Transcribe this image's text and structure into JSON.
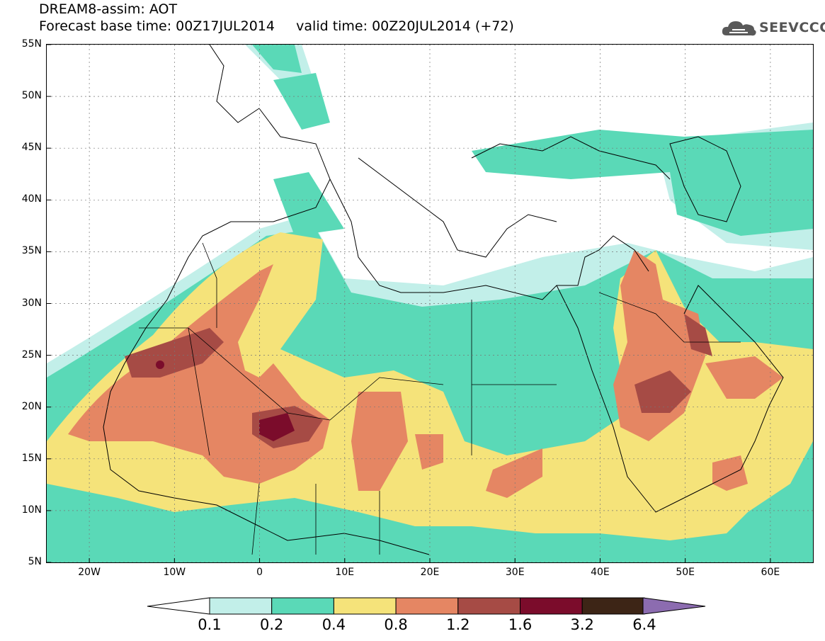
{
  "header": {
    "line1": "DREAM8-assim: AOT",
    "line2": "Forecast base time: 00Z17JUL2014     valid time: 00Z20JUL2014 (+72)"
  },
  "brand": {
    "name": "SEEVCCC",
    "logo_icon": "cloud-logo-icon"
  },
  "map": {
    "lon_range": [
      -25,
      65
    ],
    "lat_range": [
      5,
      55
    ],
    "lat_labels": [
      "55N",
      "50N",
      "45N",
      "40N",
      "35N",
      "30N",
      "25N",
      "20N",
      "15N",
      "10N",
      "5N"
    ],
    "lon_labels": [
      "20W",
      "10W",
      "0",
      "10E",
      "20E",
      "30E",
      "40E",
      "50E",
      "60E"
    ],
    "lon_tick_values": [
      -20,
      -10,
      0,
      10,
      20,
      30,
      40,
      50,
      60
    ],
    "lat_tick_values": [
      55,
      50,
      45,
      40,
      35,
      30,
      25,
      20,
      15,
      10,
      5
    ],
    "grid": true
  },
  "legend": {
    "thresholds": [
      "0.1",
      "0.2",
      "0.4",
      "0.8",
      "1.2",
      "1.6",
      "3.2",
      "6.4"
    ],
    "colors": [
      "#c2efe9",
      "#5ad9b7",
      "#f5e37a",
      "#e58663",
      "#a64b45",
      "#7b0c2b",
      "#3d2516"
    ],
    "under_color": "#ffffff",
    "over_color": "#8c6cb0"
  }
}
